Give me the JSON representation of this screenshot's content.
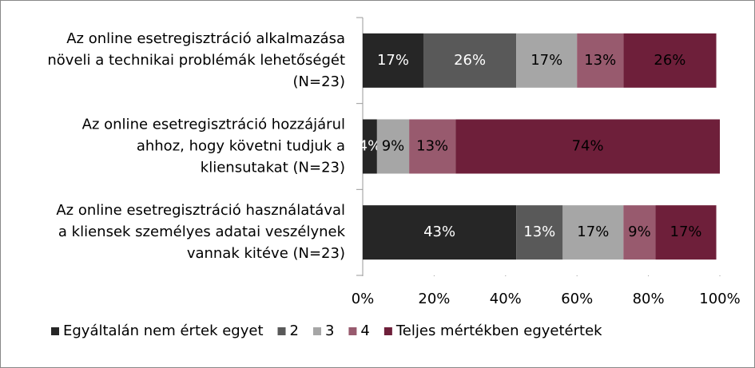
{
  "chart_data": {
    "type": "stacked-bar-horizontal",
    "categories": [
      [
        "Az online esetregisztráció alkalmazása",
        "növeli a technikai problémák lehetőségét",
        "(N=23)"
      ],
      [
        "Az online esetregisztráció hozzájárul",
        "ahhoz, hogy követni tudjuk a",
        "kliensutakat (N=23)"
      ],
      [
        "Az online esetregisztráció használatával",
        "a kliensek személyes adatai veszélynek",
        "vannak kitéve (N=23)"
      ]
    ],
    "series": [
      {
        "name": "Egyáltalán nem értek egyet",
        "color": "#262626",
        "values": [
          17,
          4,
          43
        ],
        "value_labels": [
          "17%",
          "4%",
          "43%"
        ]
      },
      {
        "name": "2",
        "color": "#595959",
        "values": [
          26,
          null,
          13
        ],
        "value_labels": [
          "26%",
          null,
          "13%"
        ]
      },
      {
        "name": "3",
        "color": "#a6a6a6",
        "values": [
          17,
          9,
          17
        ],
        "value_labels": [
          "17%",
          "9%",
          "17%"
        ]
      },
      {
        "name": "4",
        "color": "#985a6e",
        "values": [
          13,
          13,
          9
        ],
        "value_labels": [
          "13%",
          "13%",
          "9%"
        ]
      },
      {
        "name": "Teljes mértékben egyetértek",
        "color": "#6e1f3a",
        "values": [
          26,
          74,
          17
        ],
        "value_labels": [
          "26%",
          "74%",
          "17%"
        ]
      }
    ],
    "xlim": [
      0,
      100
    ],
    "xticks": [
      {
        "value": 0,
        "label": "0%"
      },
      {
        "value": 20,
        "label": "20%"
      },
      {
        "value": 40,
        "label": "40%"
      },
      {
        "value": 60,
        "label": "60%"
      },
      {
        "value": 80,
        "label": "80%"
      },
      {
        "value": 100,
        "label": "100%"
      }
    ],
    "legend": "bottom"
  }
}
